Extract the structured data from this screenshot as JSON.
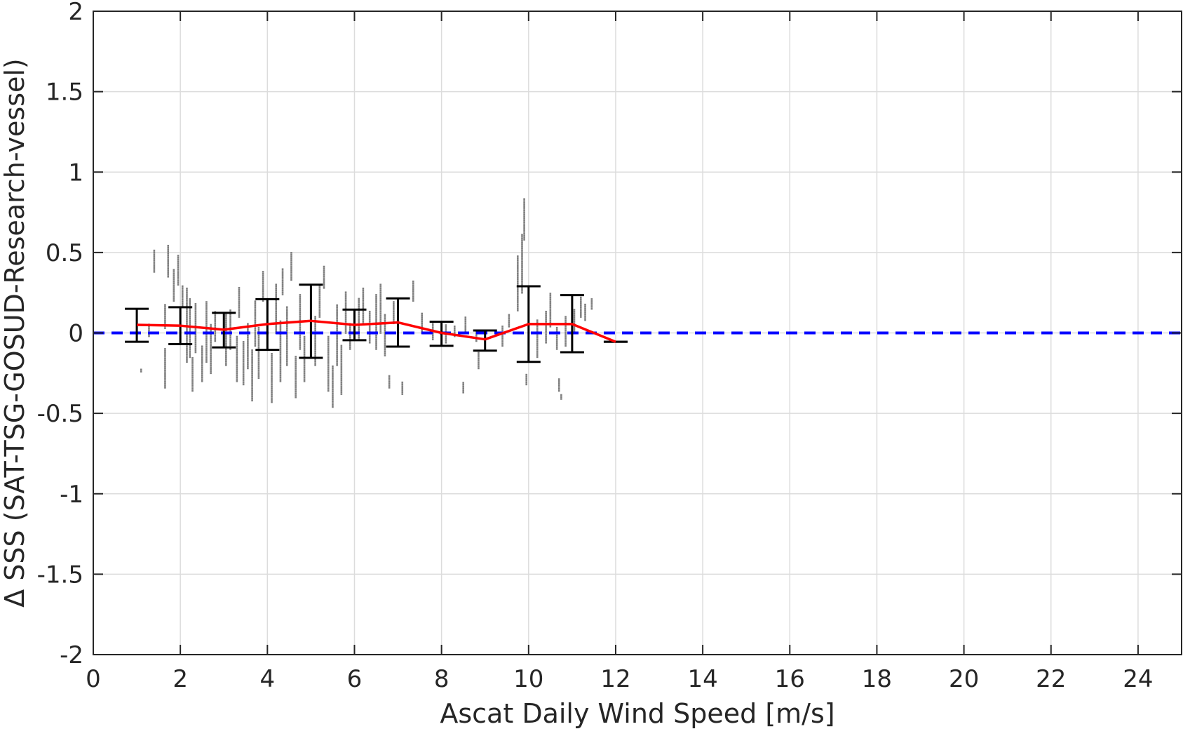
{
  "chart_data": {
    "type": "scatter",
    "xlabel": "Ascat Daily Wind Speed [m/s]",
    "ylabel": "Δ SSS (SAT-TSG-GOSUD-Research-vessel)",
    "xlim": [
      0,
      25
    ],
    "ylim": [
      -2,
      2
    ],
    "xticks": [
      0,
      2,
      4,
      6,
      8,
      10,
      12,
      14,
      16,
      18,
      20,
      22,
      24
    ],
    "yticks": [
      -2,
      -1.5,
      -1,
      -0.5,
      0,
      0.5,
      1,
      1.5,
      2
    ],
    "xtick_labels": [
      "0",
      "2",
      "4",
      "6",
      "8",
      "10",
      "12",
      "14",
      "16",
      "18",
      "20",
      "22",
      "24"
    ],
    "ytick_labels": [
      "-2",
      "-1.5",
      "-1",
      "-0.5",
      "0",
      "0.5",
      "1",
      "1.5",
      "2"
    ],
    "grid": true,
    "zero_line": {
      "y": 0,
      "color": "#0000ff",
      "style": "dashed"
    },
    "mean_line": {
      "color": "#ff0000",
      "x": [
        1,
        2,
        3,
        4,
        5,
        6,
        7,
        8,
        9,
        10,
        11,
        12
      ],
      "y": [
        0.05,
        0.045,
        0.02,
        0.055,
        0.075,
        0.05,
        0.065,
        0.0,
        -0.04,
        0.055,
        0.055,
        -0.055
      ]
    },
    "error_bars": {
      "color": "#000000",
      "x": [
        1,
        2,
        3,
        4,
        5,
        6,
        7,
        8,
        9,
        10,
        11,
        12
      ],
      "upper": [
        0.15,
        0.16,
        0.125,
        0.21,
        0.3,
        0.145,
        0.215,
        0.07,
        0.015,
        0.29,
        0.235,
        -0.055
      ],
      "lower": [
        -0.055,
        -0.07,
        -0.09,
        -0.105,
        -0.155,
        -0.045,
        -0.085,
        -0.08,
        -0.11,
        -0.18,
        -0.12,
        -0.055
      ]
    },
    "scatter_columns": {
      "color": "#7f7f7f",
      "columns": [
        {
          "x": 1.28,
          "ymin": -0.02,
          "ymax": 0.06
        },
        {
          "x": 1.4,
          "ymin": 0.38,
          "ymax": 0.52
        },
        {
          "x": 1.1,
          "ymin": -0.24,
          "ymax": -0.22
        },
        {
          "x": 1.65,
          "ymin": 0.03,
          "ymax": 0.18
        },
        {
          "x": 1.65,
          "ymin": -0.34,
          "ymax": -0.1
        },
        {
          "x": 1.72,
          "ymin": 0.35,
          "ymax": 0.55
        },
        {
          "x": 1.85,
          "ymin": 0.2,
          "ymax": 0.4
        },
        {
          "x": 1.95,
          "ymin": 0.3,
          "ymax": 0.48
        },
        {
          "x": 2.05,
          "ymin": 0.17,
          "ymax": 0.29
        },
        {
          "x": 2.15,
          "ymin": -0.18,
          "ymax": 0.28
        },
        {
          "x": 2.22,
          "ymin": -0.15,
          "ymax": 0.22
        },
        {
          "x": 2.28,
          "ymin": -0.36,
          "ymax": -0.15
        },
        {
          "x": 2.35,
          "ymin": -0.12,
          "ymax": 0.18
        },
        {
          "x": 2.5,
          "ymin": -0.3,
          "ymax": -0.08
        },
        {
          "x": 2.6,
          "ymin": -0.18,
          "ymax": 0.2
        },
        {
          "x": 2.7,
          "ymin": -0.25,
          "ymax": 0.05
        },
        {
          "x": 2.8,
          "ymin": -0.05,
          "ymax": 0.14
        },
        {
          "x": 3.05,
          "ymin": -0.2,
          "ymax": 0.12
        },
        {
          "x": 3.15,
          "ymin": -0.1,
          "ymax": 0.14
        },
        {
          "x": 3.3,
          "ymin": -0.3,
          "ymax": -0.02
        },
        {
          "x": 3.35,
          "ymin": 0.1,
          "ymax": 0.28
        },
        {
          "x": 3.45,
          "ymin": -0.32,
          "ymax": -0.05
        },
        {
          "x": 3.55,
          "ymin": -0.22,
          "ymax": 0.06
        },
        {
          "x": 3.65,
          "ymin": -0.42,
          "ymax": -0.1
        },
        {
          "x": 3.72,
          "ymin": -0.08,
          "ymax": 0.2
        },
        {
          "x": 3.8,
          "ymin": -0.28,
          "ymax": 0.04
        },
        {
          "x": 3.9,
          "ymin": 0.2,
          "ymax": 0.38
        },
        {
          "x": 4.1,
          "ymin": -0.43,
          "ymax": -0.12
        },
        {
          "x": 4.2,
          "ymin": 0.0,
          "ymax": 0.3
        },
        {
          "x": 4.3,
          "ymin": -0.3,
          "ymax": 0.08
        },
        {
          "x": 4.35,
          "ymin": 0.24,
          "ymax": 0.4
        },
        {
          "x": 4.45,
          "ymin": -0.2,
          "ymax": 0.16
        },
        {
          "x": 4.55,
          "ymin": 0.33,
          "ymax": 0.5
        },
        {
          "x": 4.65,
          "ymin": -0.4,
          "ymax": -0.14
        },
        {
          "x": 4.75,
          "ymin": -0.1,
          "ymax": 0.24
        },
        {
          "x": 4.85,
          "ymin": -0.3,
          "ymax": -0.02
        },
        {
          "x": 5.1,
          "ymin": -0.2,
          "ymax": 0.1
        },
        {
          "x": 5.2,
          "ymin": 0.1,
          "ymax": 0.3
        },
        {
          "x": 5.3,
          "ymin": 0.28,
          "ymax": 0.42
        },
        {
          "x": 5.4,
          "ymin": -0.36,
          "ymax": -0.02
        },
        {
          "x": 5.5,
          "ymin": -0.46,
          "ymax": -0.2
        },
        {
          "x": 5.6,
          "ymin": -0.2,
          "ymax": 0.18
        },
        {
          "x": 5.7,
          "ymin": -0.38,
          "ymax": -0.08
        },
        {
          "x": 5.8,
          "ymin": 0.0,
          "ymax": 0.26
        },
        {
          "x": 5.9,
          "ymin": -0.1,
          "ymax": 0.06
        },
        {
          "x": 6.1,
          "ymin": -0.04,
          "ymax": 0.22
        },
        {
          "x": 6.2,
          "ymin": 0.06,
          "ymax": 0.28
        },
        {
          "x": 6.35,
          "ymin": -0.06,
          "ymax": 0.14
        },
        {
          "x": 6.5,
          "ymin": -0.1,
          "ymax": 0.24
        },
        {
          "x": 6.6,
          "ymin": 0.0,
          "ymax": 0.3
        },
        {
          "x": 6.7,
          "ymin": -0.14,
          "ymax": 0.12
        },
        {
          "x": 6.8,
          "ymin": -0.34,
          "ymax": -0.26
        },
        {
          "x": 6.9,
          "ymin": 0.06,
          "ymax": 0.2
        },
        {
          "x": 7.1,
          "ymin": -0.38,
          "ymax": -0.3
        },
        {
          "x": 7.35,
          "ymin": 0.2,
          "ymax": 0.33
        },
        {
          "x": 7.55,
          "ymin": 0.0,
          "ymax": 0.12
        },
        {
          "x": 7.8,
          "ymin": -0.04,
          "ymax": 0.06
        },
        {
          "x": 8.1,
          "ymin": -0.06,
          "ymax": 0.05
        },
        {
          "x": 8.3,
          "ymin": -0.02,
          "ymax": 0.04
        },
        {
          "x": 8.5,
          "ymin": -0.37,
          "ymax": -0.3
        },
        {
          "x": 8.55,
          "ymin": 0.0,
          "ymax": 0.1
        },
        {
          "x": 8.8,
          "ymin": -0.05,
          "ymax": 0.02
        },
        {
          "x": 8.85,
          "ymin": -0.22,
          "ymax": -0.12
        },
        {
          "x": 9.4,
          "ymin": -0.08,
          "ymax": 0.04
        },
        {
          "x": 9.55,
          "ymin": 0.04,
          "ymax": 0.12
        },
        {
          "x": 9.75,
          "ymin": 0.14,
          "ymax": 0.48
        },
        {
          "x": 9.85,
          "ymin": 0.25,
          "ymax": 0.62
        },
        {
          "x": 9.9,
          "ymin": 0.58,
          "ymax": 0.84
        },
        {
          "x": 9.95,
          "ymin": -0.32,
          "ymax": -0.26
        },
        {
          "x": 10.2,
          "ymin": -0.15,
          "ymax": 0.08
        },
        {
          "x": 10.4,
          "ymin": -0.06,
          "ymax": 0.14
        },
        {
          "x": 10.5,
          "ymin": 0.04,
          "ymax": 0.25
        },
        {
          "x": 10.65,
          "ymin": -0.1,
          "ymax": 0.04
        },
        {
          "x": 10.7,
          "ymin": -0.36,
          "ymax": -0.28
        },
        {
          "x": 10.75,
          "ymin": -0.41,
          "ymax": -0.38
        },
        {
          "x": 10.85,
          "ymin": -0.08,
          "ymax": 0.1
        },
        {
          "x": 11.05,
          "ymin": 0.0,
          "ymax": 0.15
        },
        {
          "x": 11.2,
          "ymin": 0.1,
          "ymax": 0.22
        },
        {
          "x": 11.3,
          "ymin": 0.08,
          "ymax": 0.18
        },
        {
          "x": 11.45,
          "ymin": 0.15,
          "ymax": 0.22
        }
      ]
    }
  }
}
